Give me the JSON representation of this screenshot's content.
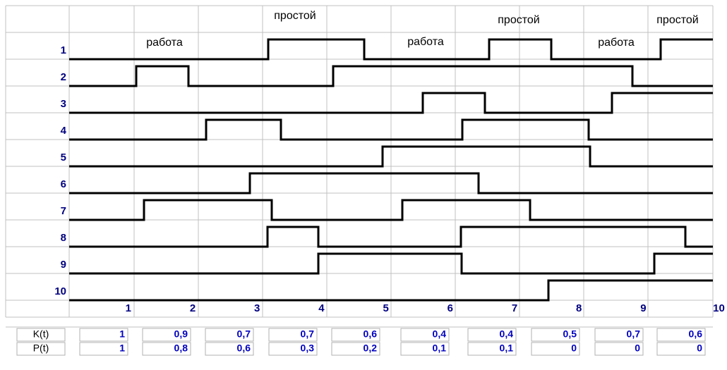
{
  "rows": [
    "1",
    "2",
    "3",
    "4",
    "5",
    "6",
    "7",
    "8",
    "9",
    "10"
  ],
  "axis": [
    "1",
    "2",
    "3",
    "4",
    "5",
    "6",
    "7",
    "8",
    "9",
    "10"
  ],
  "annotations": [
    "работа",
    "простой",
    "работа",
    "простой",
    "работа",
    "простой"
  ],
  "table": {
    "row_labels": [
      "K(t)",
      "P(t)"
    ],
    "rows": [
      [
        "1",
        "0,9",
        "0,7",
        "0,7",
        "0,6",
        "0,4",
        "0,4",
        "0,5",
        "0,7",
        "0,6"
      ],
      [
        "1",
        "0,8",
        "0,6",
        "0,3",
        "0,2",
        "0,1",
        "0,1",
        "0",
        "0",
        "0"
      ]
    ]
  }
}
